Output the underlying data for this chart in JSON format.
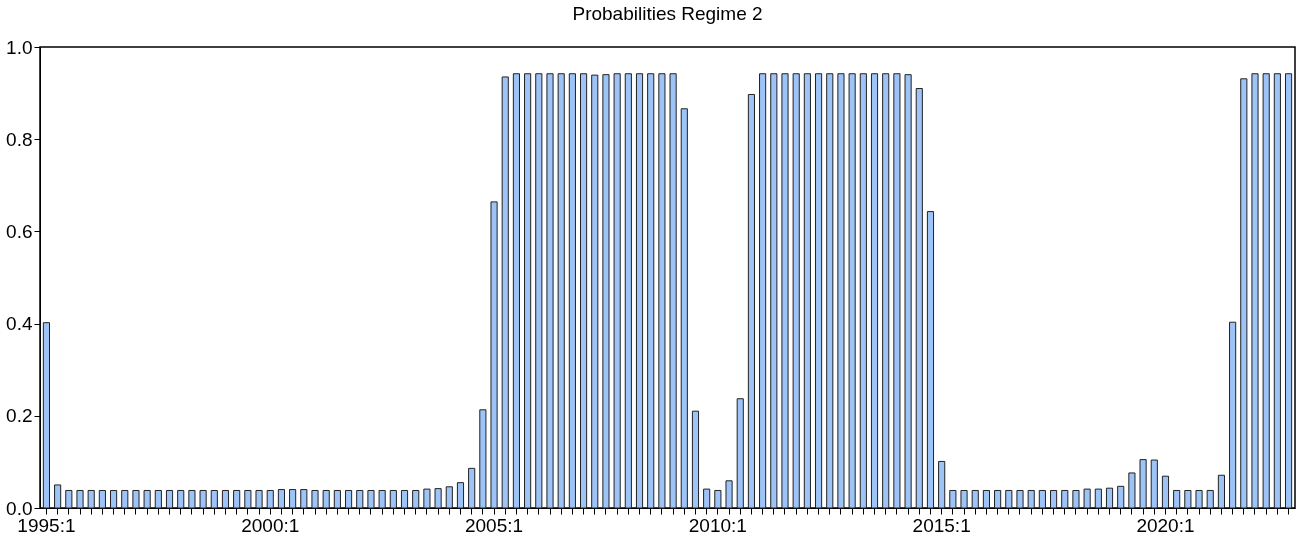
{
  "chart_data": {
    "type": "bar",
    "title": "Probabilities Regime 2",
    "categories": [
      "1995:1",
      null,
      null,
      null,
      null,
      null,
      null,
      null,
      null,
      null,
      null,
      null,
      null,
      null,
      null,
      null,
      null,
      null,
      null,
      null,
      "2000:1",
      null,
      null,
      null,
      null,
      null,
      null,
      null,
      null,
      null,
      null,
      null,
      null,
      null,
      null,
      null,
      null,
      null,
      null,
      null,
      "2005:1",
      null,
      null,
      null,
      null,
      null,
      null,
      null,
      null,
      null,
      null,
      null,
      null,
      null,
      null,
      null,
      null,
      null,
      null,
      null,
      "2010:1",
      null,
      null,
      null,
      null,
      null,
      null,
      null,
      null,
      null,
      null,
      null,
      null,
      null,
      null,
      null,
      null,
      null,
      null,
      null,
      "2015:1",
      null,
      null,
      null,
      null,
      null,
      null,
      null,
      null,
      null,
      null,
      null,
      null,
      null,
      null,
      null,
      null,
      null,
      null,
      null,
      "2020:1",
      null,
      null,
      null,
      null,
      null,
      null,
      null,
      null,
      null,
      null,
      null
    ],
    "values": [
      0.402,
      0.05,
      0.038,
      0.038,
      0.038,
      0.038,
      0.038,
      0.038,
      0.038,
      0.038,
      0.038,
      0.038,
      0.038,
      0.038,
      0.038,
      0.038,
      0.038,
      0.038,
      0.038,
      0.038,
      0.038,
      0.04,
      0.04,
      0.04,
      0.038,
      0.038,
      0.038,
      0.038,
      0.038,
      0.038,
      0.038,
      0.038,
      0.038,
      0.038,
      0.041,
      0.042,
      0.046,
      0.055,
      0.086,
      0.213,
      0.664,
      0.935,
      0.942,
      0.942,
      0.942,
      0.942,
      0.942,
      0.942,
      0.942,
      0.939,
      0.94,
      0.942,
      0.942,
      0.942,
      0.942,
      0.942,
      0.942,
      0.866,
      0.21,
      0.041,
      0.038,
      0.059,
      0.237,
      0.897,
      0.942,
      0.942,
      0.942,
      0.942,
      0.942,
      0.942,
      0.942,
      0.942,
      0.942,
      0.942,
      0.942,
      0.942,
      0.942,
      0.94,
      0.91,
      0.643,
      0.101,
      0.038,
      0.038,
      0.038,
      0.038,
      0.038,
      0.038,
      0.038,
      0.038,
      0.038,
      0.038,
      0.038,
      0.038,
      0.041,
      0.041,
      0.043,
      0.047,
      0.076,
      0.105,
      0.104,
      0.069,
      0.038,
      0.038,
      0.038,
      0.038,
      0.071,
      0.403,
      0.931,
      0.942,
      0.942,
      0.942,
      0.942
    ],
    "color": "#9dc3f7",
    "ylim": [
      0,
      1
    ],
    "yticks": [
      {
        "value": 0,
        "label": "0.0"
      },
      {
        "value": 0.2,
        "label": "0.2"
      },
      {
        "value": 0.4,
        "label": "0.4"
      },
      {
        "value": 0.6,
        "label": "0.6"
      },
      {
        "value": 0.8,
        "label": "0.8"
      },
      {
        "value": 1,
        "label": "1.0"
      }
    ],
    "grid": false
  }
}
